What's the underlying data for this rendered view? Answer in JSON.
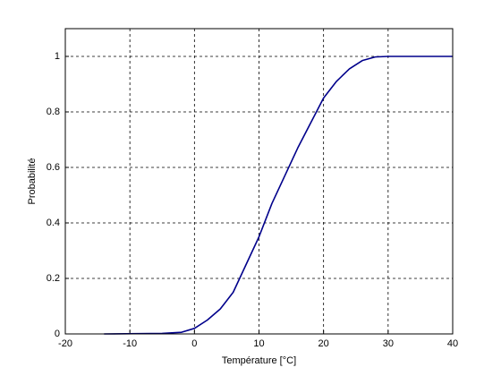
{
  "chart_data": {
    "type": "line",
    "xlabel": "Température [°C]",
    "ylabel": "Probabilité",
    "x": [
      -14,
      -5,
      -2,
      0,
      2,
      4,
      6,
      8,
      10,
      12,
      14,
      16,
      18,
      20,
      22,
      24,
      26,
      28,
      30,
      40
    ],
    "series": [
      {
        "color": "#00008b",
        "values": [
          0,
          0.002,
          0.006,
          0.02,
          0.05,
          0.09,
          0.15,
          0.25,
          0.35,
          0.47,
          0.57,
          0.67,
          0.76,
          0.85,
          0.91,
          0.955,
          0.985,
          0.998,
          1,
          1
        ]
      }
    ],
    "xlim": [
      -20,
      40
    ],
    "xticks": [
      -20,
      -10,
      0,
      10,
      20,
      30,
      40
    ],
    "ylim": [
      0,
      1.1
    ],
    "yticks": [
      0,
      0.2,
      0.4,
      0.6,
      0.8,
      1
    ],
    "grid": true
  }
}
